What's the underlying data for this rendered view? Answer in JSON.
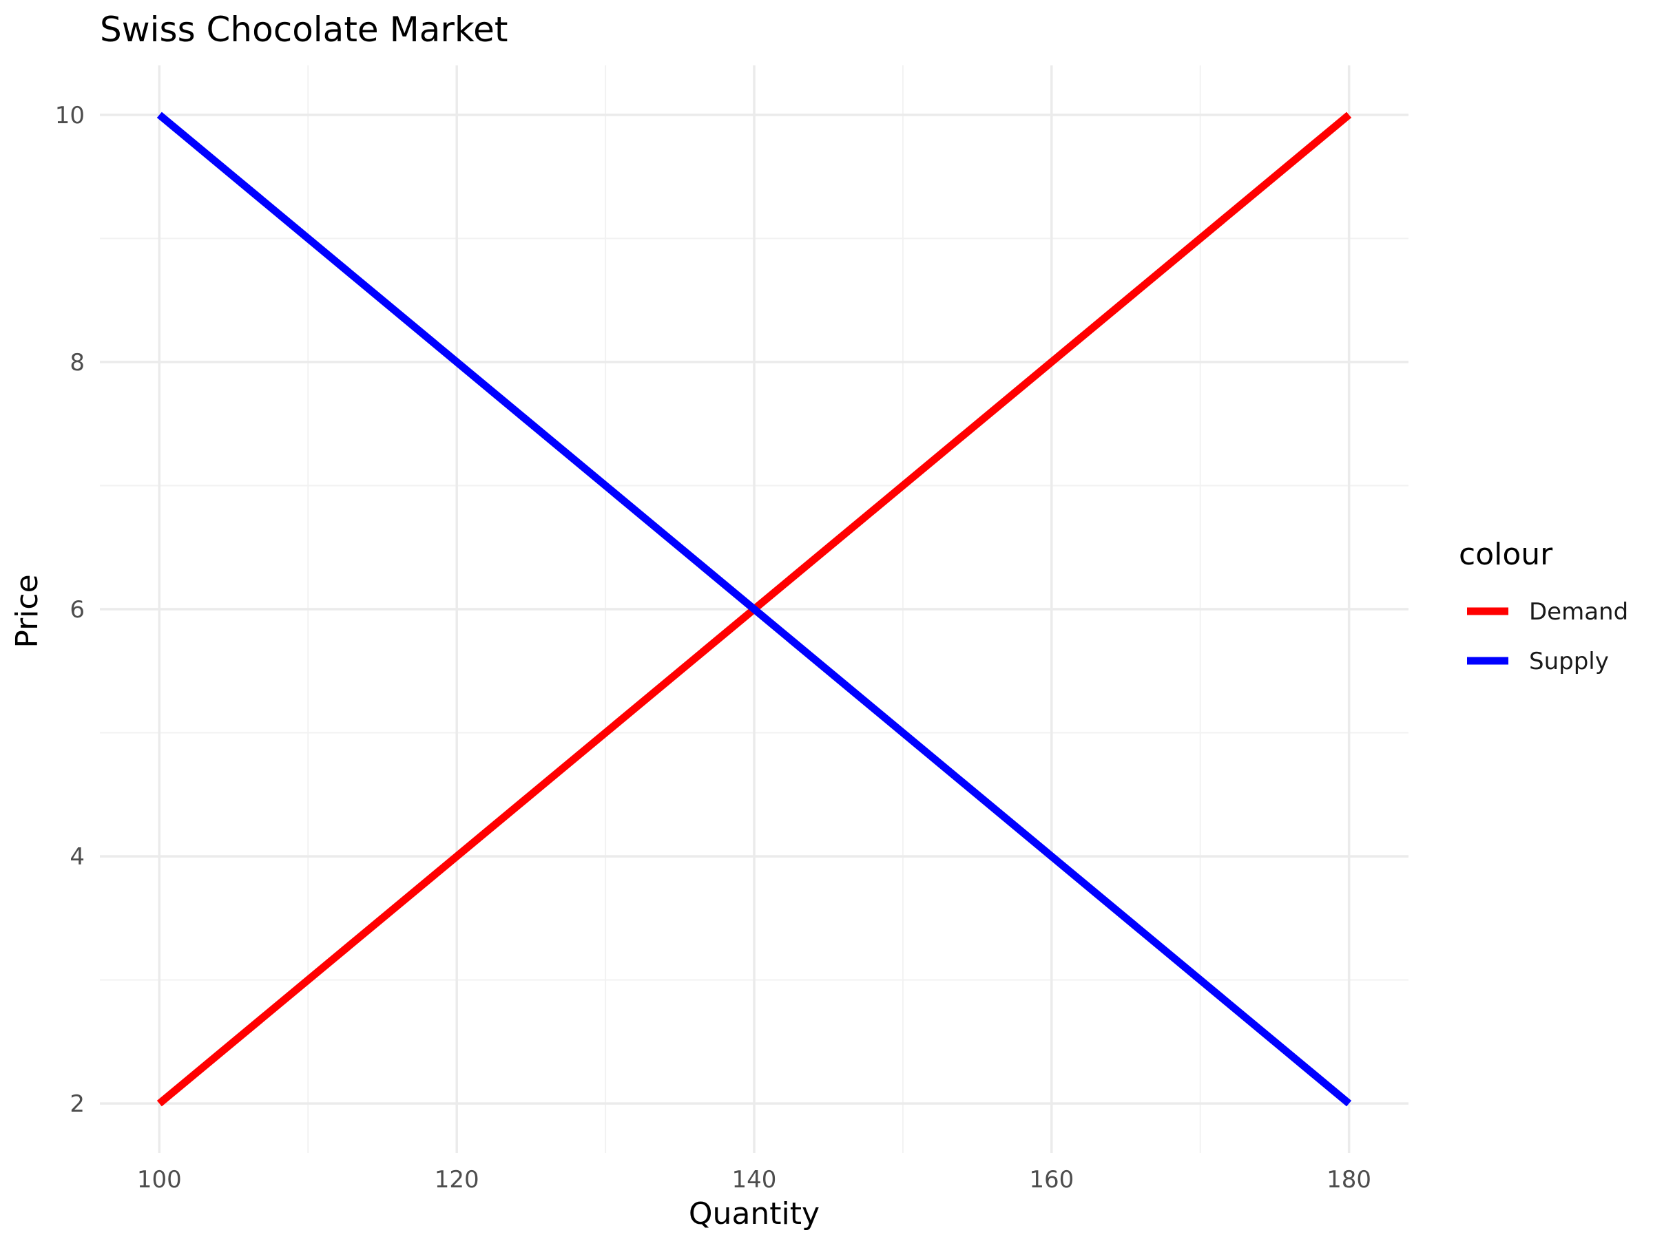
{
  "chart_data": {
    "type": "line",
    "title": "Swiss Chocolate Market",
    "xlabel": "Quantity",
    "ylabel": "Price",
    "xlim": [
      96,
      184
    ],
    "ylim": [
      1.6,
      10.4
    ],
    "x_ticks": [
      100,
      120,
      140,
      160,
      180
    ],
    "y_ticks": [
      2,
      4,
      6,
      8,
      10
    ],
    "x_tick_labels": [
      "100",
      "120",
      "140",
      "160",
      "180"
    ],
    "y_tick_labels": [
      "2",
      "4",
      "6",
      "8",
      "10"
    ],
    "grid": true,
    "legend": {
      "title": "colour",
      "position": "right"
    },
    "series": [
      {
        "name": "Demand",
        "color": "#ff0000",
        "x": [
          100,
          180
        ],
        "y": [
          2,
          10
        ]
      },
      {
        "name": "Supply",
        "color": "#0000ff",
        "x": [
          100,
          180
        ],
        "y": [
          10,
          2
        ]
      }
    ]
  }
}
